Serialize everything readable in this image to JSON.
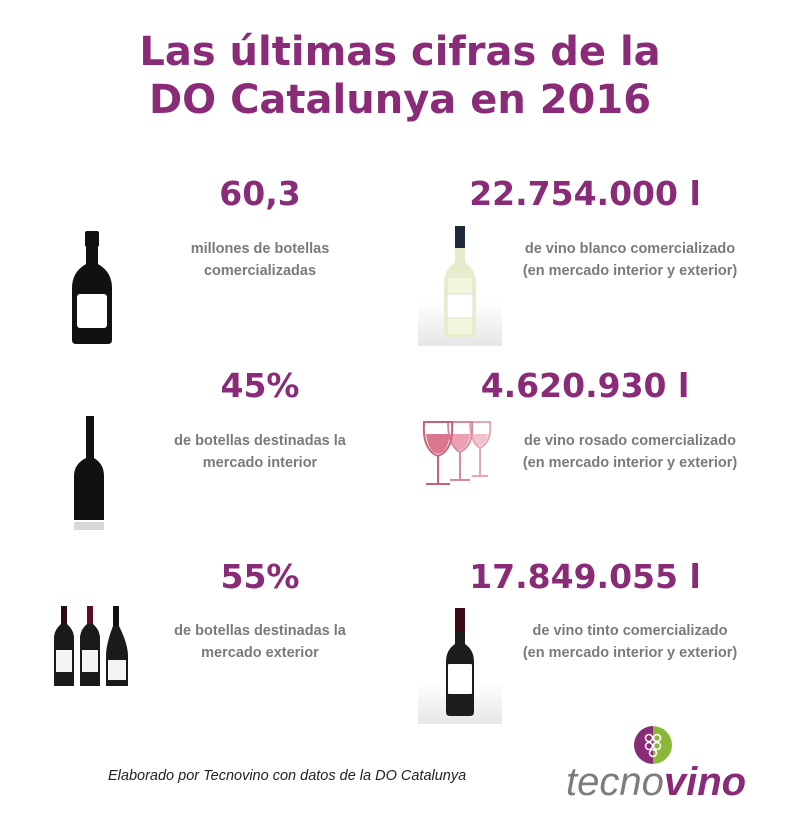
{
  "title": {
    "line1": "Las últimas cifras de la",
    "line2": "DO Catalunya en 2016"
  },
  "stats": [
    {
      "value": "60,3",
      "line1": "millones de botellas",
      "line2": "comercializadas",
      "icon": "black-bottle-icon"
    },
    {
      "value": "22.754.000 l",
      "line1": "de vino blanco comercializado",
      "line2": "(en mercado interior y exterior)",
      "icon": "white-wine-bottle-icon"
    },
    {
      "value": "45%",
      "line1": "de botellas destinadas la",
      "line2": "mercado interior",
      "icon": "bottle-silhouette-icon"
    },
    {
      "value": "4.620.930 l",
      "line1": "de vino rosado comercializado",
      "line2": "(en mercado interior y exterior)",
      "icon": "rose-wine-glasses-icon"
    },
    {
      "value": "55%",
      "line1": "de botellas destinadas la",
      "line2": "mercado exterior",
      "icon": "three-bottles-icon"
    },
    {
      "value": "17.849.055 l",
      "line1": "de vino tinto comercializado",
      "line2": "(en mercado interior y exterior)",
      "icon": "red-wine-bottle-icon"
    }
  ],
  "footer": {
    "credit": "Elaborado por Tecnovino con datos de la DO Catalunya",
    "logo_part1": "tecno",
    "logo_part2": "vino"
  },
  "colors": {
    "accent": "#8a2b78",
    "text_gray": "#7a7a7a",
    "logo_green": "#8cb83a"
  }
}
